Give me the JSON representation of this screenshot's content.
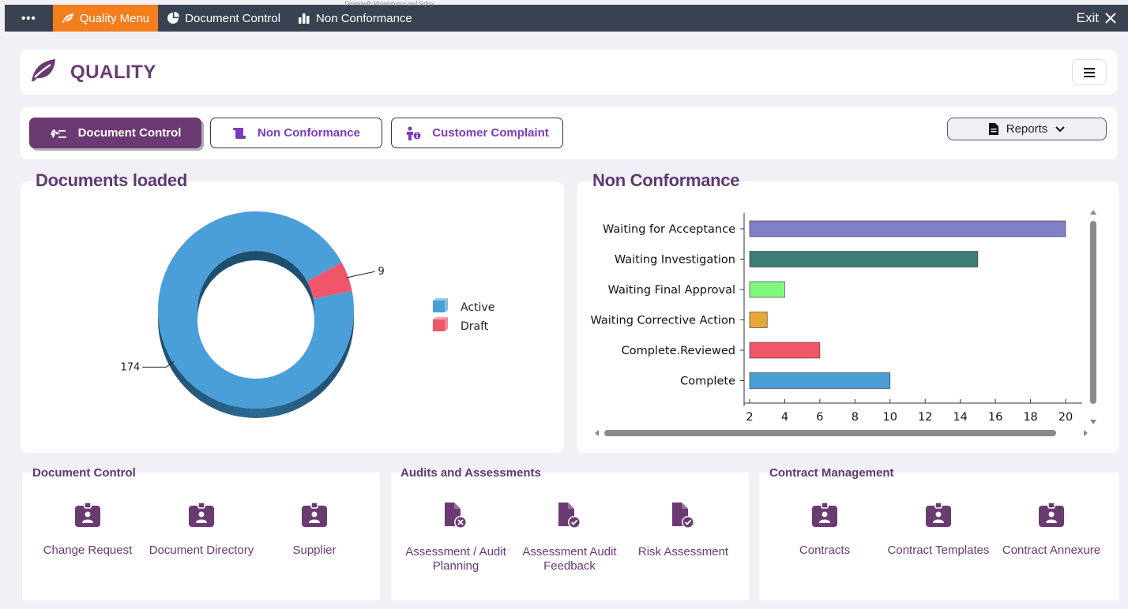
{
  "topbar": {
    "tiny_text": "Drumonde Maintenance and Safety",
    "dots": "•••",
    "items": [
      {
        "label": "Quality Menu",
        "icon": "leaf-icon"
      },
      {
        "label": "Document Control",
        "icon": "pie-icon"
      },
      {
        "label": "Non Conformance",
        "icon": "bars-icon"
      }
    ],
    "exit_label": "Exit"
  },
  "header": {
    "title": "QUALITY"
  },
  "tabs": {
    "items": [
      {
        "label": "Document Control",
        "icon": "signature-icon"
      },
      {
        "label": "Non Conformance",
        "icon": "scroll-icon"
      },
      {
        "label": "Customer Complaint",
        "icon": "person-info-icon"
      }
    ],
    "reports_label": "Reports"
  },
  "documents_loaded": {
    "title": "Documents loaded",
    "chart_data": {
      "type": "pie",
      "labels": [
        "Active",
        "Draft"
      ],
      "values": [
        174,
        9
      ],
      "colors": [
        "#4a9fd8",
        "#f0566a"
      ],
      "legend": "right"
    }
  },
  "non_conformance": {
    "title": "Non Conformance",
    "chart_data": {
      "type": "bar",
      "orientation": "horizontal",
      "categories": [
        "Waiting for Acceptance",
        "Waiting Investigation",
        "Waiting Final Approval",
        "Waiting Corrective Action",
        "Complete.Reviewed",
        "Complete"
      ],
      "values": [
        20,
        15,
        4,
        3,
        6,
        10
      ],
      "colors": [
        "#8080c8",
        "#3e7c78",
        "#80f880",
        "#e8a838",
        "#f0566a",
        "#4a9fd8"
      ],
      "xlim": [
        2,
        20
      ],
      "xticks": [
        2,
        4,
        6,
        8,
        10,
        12,
        14,
        16,
        18,
        20
      ]
    }
  },
  "modules": [
    {
      "title": "Document Control",
      "items": [
        {
          "label": "Change Request",
          "icon": "badge-icon"
        },
        {
          "label": "Document Directory",
          "icon": "badge-icon"
        },
        {
          "label": "Supplier",
          "icon": "badge-icon"
        }
      ]
    },
    {
      "title": "Audits and Assessments",
      "items": [
        {
          "label": "Assessment / Audit Planning",
          "icon": "file-x-icon"
        },
        {
          "label": "Assessment Audit Feedback",
          "icon": "file-check-icon"
        },
        {
          "label": "Risk Assessment",
          "icon": "file-check-icon"
        }
      ]
    },
    {
      "title": "Contract Management",
      "items": [
        {
          "label": "Contracts",
          "icon": "badge-icon"
        },
        {
          "label": "Contract Templates",
          "icon": "badge-icon"
        },
        {
          "label": "Contract Annexure",
          "icon": "badge-icon"
        }
      ]
    }
  ]
}
